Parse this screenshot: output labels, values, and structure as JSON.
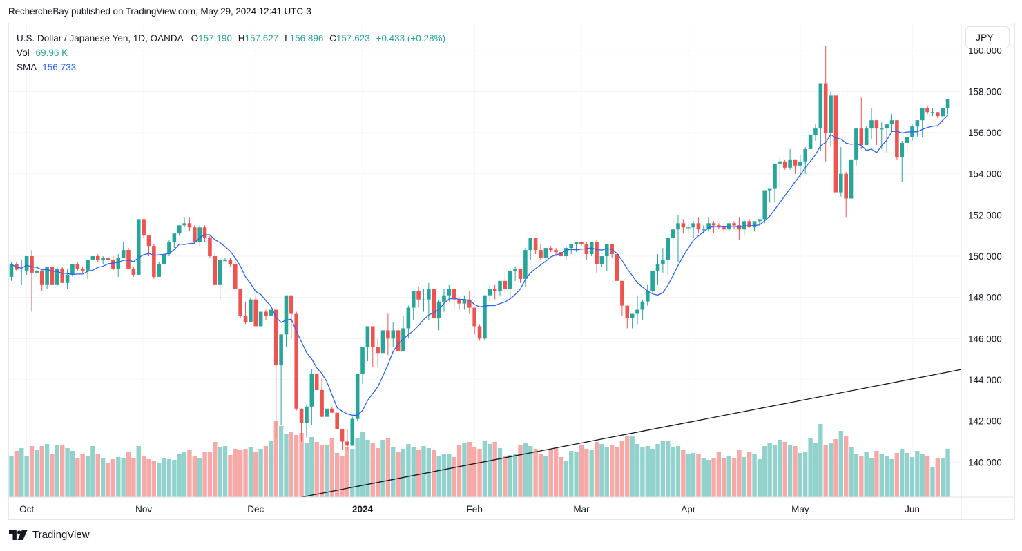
{
  "publish_line": "RechercheBay published on TradingView.com, May 29, 2024 12:41 UTC-3",
  "legend": {
    "symbol": "U.S. Dollar / Japanese Yen, 1D, OANDA",
    "o_label": "O",
    "o": "157.190",
    "h_label": "H",
    "h": "157.627",
    "l_label": "L",
    "l": "156.896",
    "c_label": "C",
    "c": "157.623",
    "change": "+0.433 (+0.28%)",
    "vol_label": "Vol",
    "vol": "69.96 K",
    "sma_label": "SMA",
    "sma": "156.733"
  },
  "currency_button": "JPY",
  "brand": "TradingView",
  "colors": {
    "up": "#26a69a",
    "down": "#ef5350",
    "up_vol": "#92d2cc",
    "down_vol": "#f7a9a7",
    "sma": "#2962ff",
    "trendline": "#131722",
    "grid": "#f0f3fa"
  },
  "chart_data": {
    "type": "candlestick",
    "title": "U.S. Dollar / Japanese Yen, 1D, OANDA",
    "y_ticks": [
      "160.000",
      "158.000",
      "156.000",
      "154.000",
      "152.000",
      "150.000",
      "148.000",
      "146.000",
      "144.000",
      "142.000",
      "140.000"
    ],
    "ylim": [
      138.3,
      161.3
    ],
    "x_ticks": [
      {
        "label": "Oct",
        "bar": 3,
        "bold": false
      },
      {
        "label": "Nov",
        "bar": 26,
        "bold": false
      },
      {
        "label": "Dec",
        "bar": 48,
        "bold": false
      },
      {
        "label": "2024",
        "bar": 69,
        "bold": true
      },
      {
        "label": "Feb",
        "bar": 91,
        "bold": false
      },
      {
        "label": "Mar",
        "bar": 112,
        "bold": false
      },
      {
        "label": "Apr",
        "bar": 133,
        "bold": false
      },
      {
        "label": "May",
        "bar": 155,
        "bold": false
      },
      {
        "label": "Jun",
        "bar": 177,
        "bold": false
      }
    ],
    "total_slots": 188,
    "trendline": {
      "from": {
        "bar": 57,
        "price": 138.3
      },
      "to": {
        "bar": 187.3,
        "price": 144.5
      }
    },
    "candles": [
      [
        149.0,
        149.7,
        148.8,
        149.6,
        60
      ],
      [
        149.6,
        149.7,
        149.3,
        149.35,
        67
      ],
      [
        149.3,
        149.8,
        148.6,
        149.3,
        71
      ],
      [
        149.3,
        150.0,
        149.1,
        150.0,
        60
      ],
      [
        150.0,
        150.3,
        147.3,
        149.2,
        74
      ],
      [
        149.2,
        149.5,
        149.0,
        149.3,
        69
      ],
      [
        149.3,
        149.3,
        148.3,
        148.6,
        74
      ],
      [
        148.6,
        149.5,
        148.4,
        149.5,
        77
      ],
      [
        149.5,
        149.2,
        148.3,
        148.6,
        62
      ],
      [
        148.6,
        149.5,
        148.5,
        149.4,
        75
      ],
      [
        149.4,
        149.5,
        148.7,
        148.7,
        76
      ],
      [
        148.7,
        149.4,
        148.4,
        149.1,
        71
      ],
      [
        149.1,
        149.6,
        149.0,
        149.6,
        67
      ],
      [
        149.6,
        149.7,
        149.3,
        149.4,
        56
      ],
      [
        149.4,
        149.5,
        149.2,
        149.3,
        63
      ],
      [
        149.3,
        149.8,
        148.9,
        149.8,
        60
      ],
      [
        149.8,
        150.0,
        149.6,
        150.0,
        74
      ],
      [
        150.0,
        150.1,
        149.7,
        149.8,
        62
      ],
      [
        149.8,
        150.0,
        149.6,
        149.9,
        56
      ],
      [
        149.9,
        150.0,
        149.7,
        149.8,
        49
      ],
      [
        149.8,
        150.0,
        149.3,
        149.4,
        55
      ],
      [
        149.4,
        150.1,
        149.0,
        149.9,
        58
      ],
      [
        149.9,
        150.7,
        149.9,
        150.3,
        56
      ],
      [
        150.3,
        150.4,
        149.4,
        149.4,
        65
      ],
      [
        149.4,
        149.5,
        149.0,
        149.1,
        56
      ],
      [
        149.1,
        151.8,
        149.1,
        151.8,
        74
      ],
      [
        151.8,
        151.8,
        150.9,
        151.0,
        60
      ],
      [
        151.0,
        151.0,
        150.0,
        150.5,
        55
      ],
      [
        150.5,
        150.6,
        148.9,
        149.0,
        52
      ],
      [
        149.0,
        149.7,
        149.2,
        149.6,
        49
      ],
      [
        149.6,
        150.1,
        149.3,
        150.1,
        56
      ],
      [
        150.1,
        150.8,
        150.0,
        150.7,
        55
      ],
      [
        150.7,
        151.1,
        150.4,
        151.1,
        54
      ],
      [
        151.1,
        151.5,
        151.0,
        151.5,
        63
      ],
      [
        151.5,
        151.9,
        151.4,
        151.6,
        65
      ],
      [
        151.6,
        151.9,
        151.2,
        151.4,
        69
      ],
      [
        151.4,
        151.5,
        150.6,
        150.7,
        60
      ],
      [
        150.7,
        151.5,
        150.5,
        151.4,
        57
      ],
      [
        151.4,
        151.5,
        150.7,
        150.9,
        66
      ],
      [
        150.9,
        151.0,
        149.9,
        150.0,
        66
      ],
      [
        150.0,
        150.2,
        148.6,
        148.6,
        80
      ],
      [
        148.6,
        149.9,
        147.9,
        149.8,
        73
      ],
      [
        149.8,
        149.9,
        149.8,
        149.8,
        74
      ],
      [
        149.8,
        149.9,
        149.5,
        149.6,
        61
      ],
      [
        149.6,
        149.7,
        148.9,
        148.4,
        70
      ],
      [
        148.4,
        148.0,
        147.0,
        147.1,
        68
      ],
      [
        147.1,
        147.8,
        146.7,
        146.8,
        70
      ],
      [
        146.8,
        148.0,
        147.0,
        147.9,
        72
      ],
      [
        147.9,
        148.1,
        146.9,
        146.6,
        66
      ],
      [
        146.6,
        147.3,
        146.7,
        147.3,
        70
      ],
      [
        147.3,
        147.4,
        146.9,
        147.1,
        74
      ],
      [
        147.1,
        147.4,
        147.2,
        147.4,
        81
      ],
      [
        147.4,
        147.4,
        141.2,
        144.7,
        110
      ],
      [
        144.7,
        146.2,
        141.8,
        146.2,
        103
      ],
      [
        146.2,
        148.0,
        145.6,
        148.1,
        92
      ],
      [
        148.1,
        148.1,
        146.0,
        147.2,
        95
      ],
      [
        147.2,
        147.3,
        142.5,
        142.6,
        90
      ],
      [
        142.6,
        142.5,
        141.0,
        141.9,
        93
      ],
      [
        141.9,
        142.8,
        141.2,
        142.7,
        79
      ],
      [
        142.7,
        144.5,
        141.8,
        144.3,
        87
      ],
      [
        144.3,
        144.3,
        143.8,
        143.5,
        80
      ],
      [
        143.5,
        144.1,
        142.6,
        142.2,
        76
      ],
      [
        142.2,
        142.6,
        141.7,
        142.6,
        76
      ],
      [
        142.6,
        142.7,
        142.4,
        142.4,
        85
      ],
      [
        142.4,
        142.3,
        141.6,
        141.6,
        64
      ],
      [
        141.6,
        141.6,
        140.6,
        141.0,
        60
      ],
      [
        141.0,
        141.6,
        140.6,
        140.8,
        72
      ],
      [
        140.8,
        142.2,
        140.8,
        142.1,
        70
      ],
      [
        142.1,
        144.3,
        142.0,
        144.3,
        86
      ],
      [
        144.3,
        145.0,
        143.8,
        145.6,
        94
      ],
      [
        145.6,
        146.6,
        144.9,
        146.6,
        83
      ],
      [
        146.6,
        146.4,
        144.6,
        145.6,
        78
      ],
      [
        145.6,
        146.0,
        144.6,
        145.3,
        71
      ],
      [
        145.3,
        146.5,
        145.0,
        146.4,
        83
      ],
      [
        146.4,
        147.2,
        145.2,
        146.0,
        86
      ],
      [
        146.0,
        146.8,
        145.6,
        146.4,
        72
      ],
      [
        146.4,
        146.8,
        146.7,
        145.4,
        66
      ],
      [
        145.4,
        147.1,
        145.8,
        146.5,
        70
      ],
      [
        146.5,
        147.6,
        146.0,
        147.5,
        77
      ],
      [
        147.5,
        148.1,
        146.9,
        148.3,
        73
      ],
      [
        148.3,
        148.5,
        147.5,
        147.9,
        68
      ],
      [
        147.9,
        148.4,
        147.3,
        147.9,
        74
      ],
      [
        147.9,
        148.7,
        146.9,
        148.4,
        71
      ],
      [
        148.4,
        148.2,
        147.0,
        147.0,
        69
      ],
      [
        147.0,
        147.9,
        146.4,
        147.8,
        59
      ],
      [
        147.8,
        148.4,
        147.3,
        148.1,
        62
      ],
      [
        148.1,
        148.6,
        147.8,
        148.4,
        63
      ],
      [
        148.4,
        148.4,
        147.4,
        147.9,
        58
      ],
      [
        147.9,
        148.0,
        147.4,
        147.7,
        75
      ],
      [
        147.7,
        148.1,
        147.4,
        147.9,
        78
      ],
      [
        147.9,
        148.3,
        147.2,
        147.5,
        80
      ],
      [
        147.5,
        147.4,
        146.2,
        146.6,
        73
      ],
      [
        146.6,
        146.7,
        145.9,
        146.0,
        70
      ],
      [
        146.0,
        148.1,
        145.9,
        148.1,
        81
      ],
      [
        148.1,
        148.6,
        147.8,
        148.4,
        77
      ],
      [
        148.4,
        148.6,
        147.9,
        148.3,
        80
      ],
      [
        148.3,
        148.8,
        148.1,
        148.8,
        71
      ],
      [
        148.8,
        149.3,
        148.2,
        148.4,
        59
      ],
      [
        148.4,
        149.4,
        148.0,
        149.3,
        61
      ],
      [
        149.3,
        149.5,
        148.8,
        149.4,
        63
      ],
      [
        149.4,
        149.4,
        148.7,
        148.9,
        76
      ],
      [
        148.9,
        150.4,
        148.5,
        150.3,
        79
      ],
      [
        150.3,
        150.8,
        149.8,
        150.9,
        74
      ],
      [
        150.9,
        150.8,
        150.1,
        150.3,
        70
      ],
      [
        150.3,
        150.6,
        149.8,
        149.9,
        62
      ],
      [
        149.9,
        150.3,
        149.6,
        150.4,
        60
      ],
      [
        150.4,
        150.5,
        150.2,
        150.3,
        70
      ],
      [
        150.3,
        150.4,
        150.0,
        150.2,
        72
      ],
      [
        150.2,
        150.3,
        149.8,
        150.0,
        58
      ],
      [
        150.0,
        150.5,
        149.8,
        150.4,
        53
      ],
      [
        150.4,
        150.6,
        150.1,
        150.6,
        67
      ],
      [
        150.6,
        150.7,
        150.2,
        150.7,
        65
      ],
      [
        150.7,
        150.7,
        150.5,
        150.6,
        75
      ],
      [
        150.6,
        150.7,
        149.8,
        150.1,
        70
      ],
      [
        150.1,
        150.7,
        150.0,
        150.7,
        69
      ],
      [
        150.7,
        150.8,
        149.2,
        149.6,
        80
      ],
      [
        149.6,
        150.0,
        149.5,
        150.0,
        77
      ],
      [
        150.0,
        150.6,
        149.3,
        150.6,
        72
      ],
      [
        150.6,
        150.6,
        149.9,
        150.1,
        75
      ],
      [
        150.1,
        150.0,
        148.6,
        148.8,
        72
      ],
      [
        148.8,
        148.6,
        147.1,
        147.6,
        82
      ],
      [
        147.6,
        147.4,
        146.5,
        147.0,
        89
      ],
      [
        147.0,
        147.2,
        146.5,
        147.2,
        89
      ],
      [
        147.2,
        148.1,
        146.7,
        147.4,
        77
      ],
      [
        147.4,
        147.9,
        146.9,
        147.8,
        72
      ],
      [
        147.8,
        148.6,
        147.6,
        148.3,
        74
      ],
      [
        148.3,
        149.3,
        148.2,
        149.3,
        70
      ],
      [
        149.3,
        150.1,
        148.6,
        149.6,
        77
      ],
      [
        149.6,
        150.4,
        149.2,
        149.8,
        82
      ],
      [
        149.8,
        150.9,
        149.1,
        150.9,
        82
      ],
      [
        150.9,
        151.8,
        150.0,
        151.3,
        72
      ],
      [
        151.3,
        152.0,
        149.7,
        151.6,
        74
      ],
      [
        151.6,
        151.8,
        151.1,
        151.4,
        68
      ],
      [
        151.4,
        151.6,
        151.1,
        151.4,
        62
      ],
      [
        151.4,
        151.7,
        150.9,
        151.6,
        64
      ],
      [
        151.6,
        151.9,
        151.1,
        151.3,
        62
      ],
      [
        151.3,
        151.5,
        151.1,
        151.3,
        57
      ],
      [
        151.3,
        151.9,
        151.2,
        151.6,
        54
      ],
      [
        151.6,
        151.7,
        151.1,
        151.5,
        56
      ],
      [
        151.5,
        151.6,
        151.3,
        151.4,
        65
      ],
      [
        151.4,
        151.6,
        151.1,
        151.3,
        56
      ],
      [
        151.3,
        151.7,
        151.2,
        151.6,
        60
      ],
      [
        151.6,
        151.7,
        151.3,
        151.5,
        57
      ],
      [
        151.5,
        151.9,
        150.8,
        151.3,
        68
      ],
      [
        151.3,
        151.8,
        151.0,
        151.7,
        58
      ],
      [
        151.7,
        151.8,
        151.6,
        151.4,
        66
      ],
      [
        151.4,
        151.6,
        151.2,
        151.7,
        62
      ],
      [
        151.7,
        151.8,
        151.5,
        151.8,
        55
      ],
      [
        151.8,
        153.2,
        151.6,
        153.2,
        74
      ],
      [
        153.2,
        153.3,
        152.6,
        153.3,
        78
      ],
      [
        153.3,
        153.8,
        152.6,
        154.5,
        76
      ],
      [
        154.5,
        154.8,
        153.3,
        154.6,
        83
      ],
      [
        154.6,
        154.7,
        154.2,
        154.3,
        80
      ],
      [
        154.3,
        155.2,
        154.2,
        154.7,
        76
      ],
      [
        154.7,
        154.6,
        154.0,
        154.4,
        74
      ],
      [
        154.4,
        154.9,
        153.8,
        154.6,
        64
      ],
      [
        154.6,
        155.3,
        154.0,
        155.2,
        66
      ],
      [
        155.2,
        155.6,
        155.3,
        155.9,
        85
      ],
      [
        155.9,
        156.4,
        155.6,
        156.2,
        78
      ],
      [
        156.2,
        158.4,
        155.1,
        158.4,
        106
      ],
      [
        158.4,
        160.2,
        154.6,
        156.0,
        76
      ],
      [
        156.0,
        158.0,
        155.3,
        157.8,
        79
      ],
      [
        157.8,
        157.4,
        152.9,
        153.1,
        84
      ],
      [
        153.1,
        155.3,
        152.9,
        154.0,
        96
      ],
      [
        154.0,
        154.1,
        151.9,
        152.8,
        89
      ],
      [
        152.8,
        155.0,
        152.7,
        154.7,
        72
      ],
      [
        154.7,
        156.0,
        154.4,
        156.2,
        62
      ],
      [
        156.2,
        157.7,
        155.2,
        155.4,
        60
      ],
      [
        155.4,
        156.3,
        155.4,
        156.2,
        65
      ],
      [
        156.2,
        157.2,
        155.7,
        156.6,
        57
      ],
      [
        156.6,
        156.6,
        155.4,
        156.2,
        67
      ],
      [
        156.2,
        156.5,
        155.2,
        156.2,
        63
      ],
      [
        156.2,
        156.3,
        155.0,
        156.4,
        59
      ],
      [
        156.4,
        156.9,
        156.1,
        156.6,
        55
      ],
      [
        156.6,
        156.6,
        154.7,
        154.8,
        64
      ],
      [
        154.8,
        155.6,
        153.6,
        155.5,
        70
      ],
      [
        155.5,
        156.0,
        155.1,
        155.8,
        64
      ],
      [
        155.8,
        156.4,
        155.6,
        156.3,
        58
      ],
      [
        156.3,
        156.6,
        155.8,
        156.6,
        67
      ],
      [
        156.6,
        157.2,
        155.8,
        157.2,
        63
      ],
      [
        157.2,
        157.3,
        156.9,
        157.0,
        60
      ],
      [
        157.0,
        157.2,
        156.8,
        157.0,
        43
      ],
      [
        157.0,
        157.0,
        156.7,
        156.8,
        56
      ],
      [
        156.8,
        157.2,
        156.7,
        157.2,
        56
      ],
      [
        157.19,
        157.627,
        156.896,
        157.623,
        70
      ]
    ],
    "sma_length": 9,
    "volume_max_k": 150
  }
}
